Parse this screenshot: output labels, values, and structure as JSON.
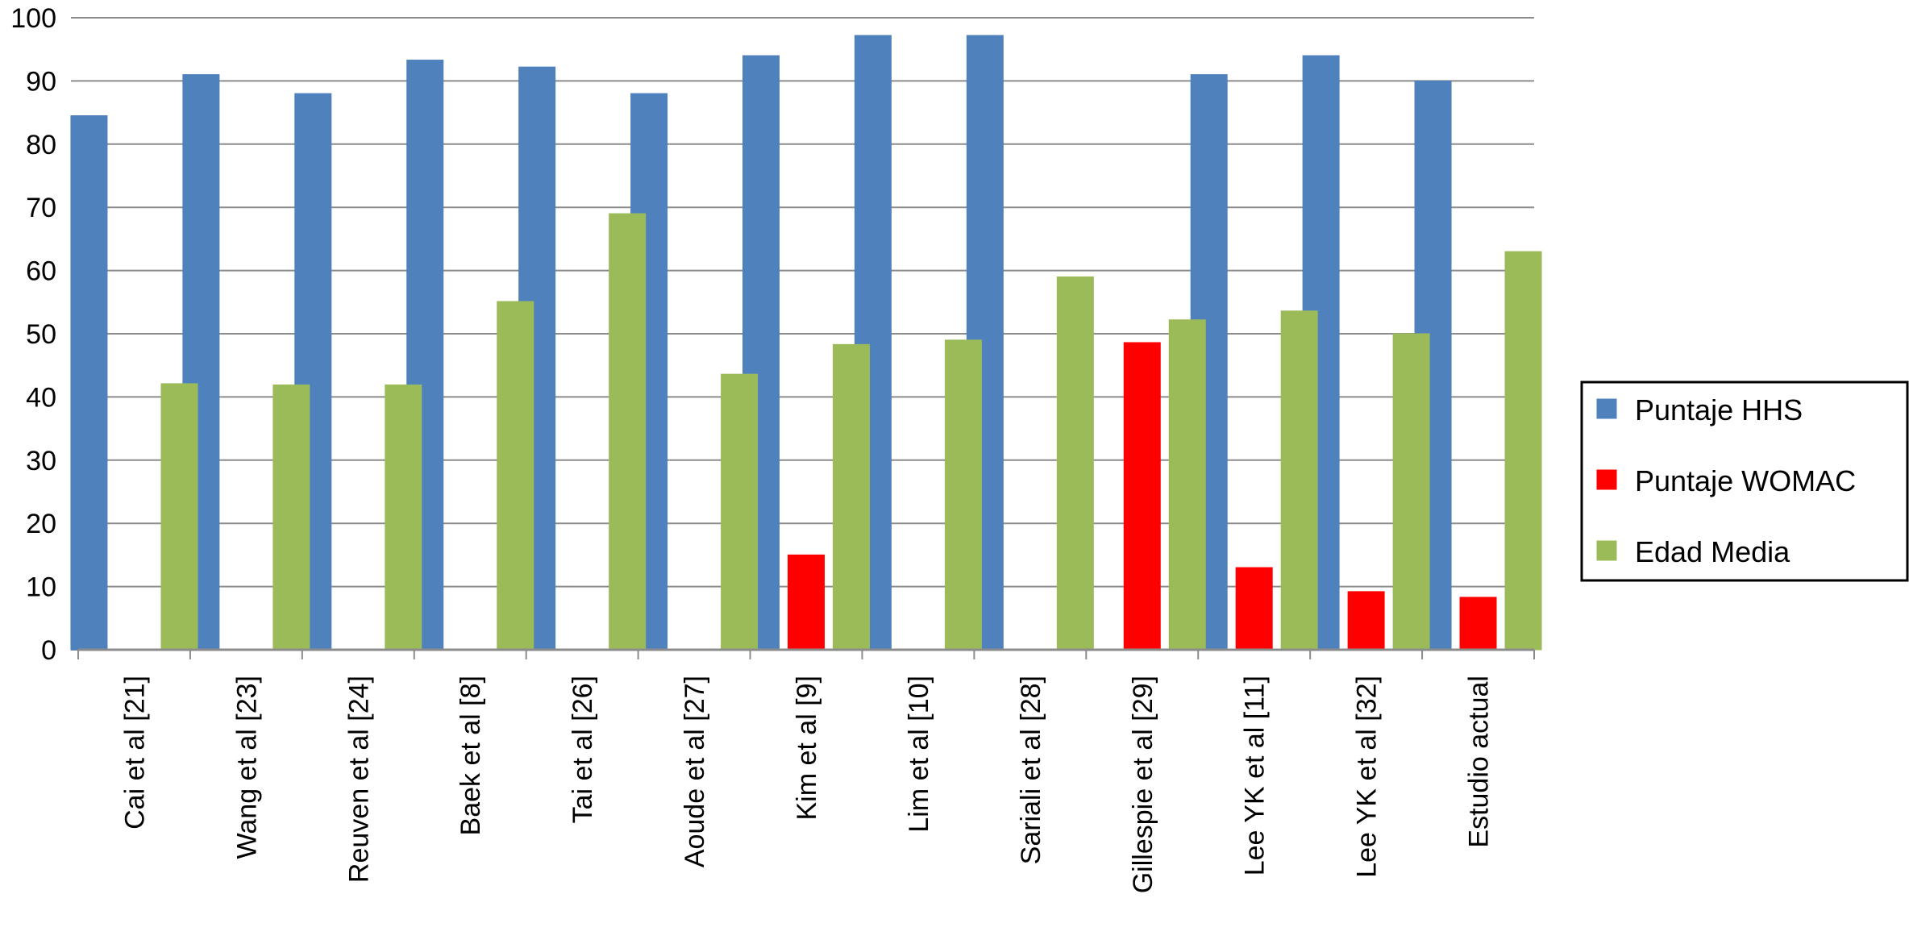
{
  "chart_data": {
    "type": "bar",
    "categories": [
      "Cai et al [21]",
      "Wang et al [23]",
      "Reuven et al [24]",
      "Baek et al [8]",
      "Tai et al [26]",
      "Aoude et al [27]",
      "Kim et al [9]",
      "Lim et al [10]",
      "Sariali et al [28]",
      "Gillespie et al [29]",
      "Lee YK et al [11]",
      "Lee YK et al [32]",
      "Estudio actual"
    ],
    "series": [
      {
        "name": "Puntaje HHS",
        "color": "#4f81bd",
        "values": [
          84.5,
          91,
          88,
          93.3,
          92.2,
          88,
          94,
          97.2,
          97.2,
          null,
          91,
          94,
          90
        ]
      },
      {
        "name": "Puntaje WOMAC",
        "color": "#ff0000",
        "values": [
          null,
          null,
          null,
          null,
          null,
          null,
          15,
          null,
          null,
          48.6,
          13,
          9.2,
          8.3
        ]
      },
      {
        "name": "Edad Media",
        "color": "#9bbb59",
        "values": [
          42.1,
          41.9,
          41.9,
          55.1,
          69,
          43.6,
          48.3,
          49,
          59,
          52.2,
          53.6,
          50,
          63
        ]
      }
    ],
    "ylim": [
      0,
      100
    ],
    "yticks": [
      0,
      10,
      20,
      30,
      40,
      50,
      60,
      70,
      80,
      90,
      100
    ],
    "grid": true,
    "legend_position": "right",
    "title": "",
    "xlabel": "",
    "ylabel": ""
  }
}
